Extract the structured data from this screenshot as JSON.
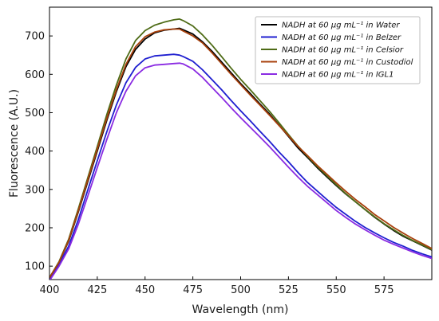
{
  "chart_data": {
    "type": "line",
    "xlabel": "Wavelength (nm)",
    "ylabel": "Fluorescence (A.U.)",
    "xlim": [
      400,
      600
    ],
    "ylim": [
      65,
      775
    ],
    "xticks": [
      "400",
      "425",
      "450",
      "475",
      "500",
      "525",
      "550",
      "575"
    ],
    "xtick_values": [
      400,
      425,
      450,
      475,
      500,
      525,
      550,
      575
    ],
    "yticks": [
      "100",
      "200",
      "300",
      "400",
      "500",
      "600",
      "700"
    ],
    "ytick_values": [
      100,
      200,
      300,
      400,
      500,
      600,
      700
    ],
    "grid": false,
    "legend_position": "top-right",
    "x": [
      400,
      405,
      410,
      415,
      420,
      425,
      430,
      435,
      440,
      445,
      450,
      455,
      460,
      465,
      468,
      470,
      475,
      480,
      485,
      490,
      495,
      500,
      505,
      510,
      515,
      520,
      525,
      530,
      535,
      540,
      545,
      550,
      555,
      560,
      565,
      570,
      575,
      580,
      585,
      590,
      595,
      600
    ],
    "series": [
      {
        "name": "NADH at 60 μg mL⁻¹ in Water",
        "color": "#000000",
        "values": [
          70,
          110,
          165,
          240,
          320,
          400,
          480,
          555,
          620,
          665,
          692,
          708,
          715,
          718,
          720,
          716,
          705,
          685,
          660,
          632,
          604,
          576,
          550,
          523,
          497,
          468,
          438,
          408,
          383,
          357,
          333,
          310,
          288,
          268,
          248,
          228,
          210,
          193,
          178,
          166,
          154,
          142
        ]
      },
      {
        "name": "NADH at 60 μg mL⁻¹ in Belzer",
        "color": "#1f1fd0",
        "values": [
          68,
          105,
          152,
          220,
          298,
          375,
          450,
          520,
          578,
          618,
          640,
          648,
          650,
          652,
          650,
          646,
          634,
          612,
          586,
          560,
          532,
          505,
          479,
          452,
          426,
          398,
          372,
          344,
          318,
          296,
          274,
          253,
          235,
          217,
          201,
          187,
          174,
          162,
          152,
          141,
          132,
          124
        ]
      },
      {
        "name": "NADH at 60 μg mL⁻¹ in Celsior",
        "color": "#4e6b16",
        "values": [
          70,
          112,
          170,
          248,
          330,
          412,
          495,
          572,
          640,
          688,
          714,
          728,
          736,
          742,
          744,
          740,
          726,
          703,
          676,
          646,
          616,
          587,
          560,
          532,
          504,
          474,
          443,
          413,
          386,
          360,
          336,
          312,
          289,
          268,
          248,
          229,
          211,
          195,
          180,
          167,
          155,
          143
        ]
      },
      {
        "name": "NADH at 60 μg mL⁻¹ in Custodiol",
        "color": "#a8400c",
        "values": [
          70,
          110,
          167,
          243,
          324,
          405,
          485,
          560,
          626,
          672,
          698,
          710,
          716,
          718,
          718,
          713,
          700,
          682,
          656,
          628,
          600,
          573,
          546,
          520,
          494,
          467,
          440,
          412,
          388,
          363,
          340,
          317,
          295,
          274,
          255,
          235,
          218,
          201,
          186,
          172,
          159,
          146
        ]
      },
      {
        "name": "NADH at 60 μg mL⁻¹ in IGL1",
        "color": "#8a2be2",
        "values": [
          62,
          100,
          145,
          208,
          282,
          357,
          430,
          500,
          556,
          596,
          617,
          624,
          626,
          628,
          629,
          627,
          614,
          592,
          566,
          540,
          513,
          487,
          462,
          437,
          412,
          385,
          358,
          332,
          308,
          287,
          266,
          245,
          227,
          210,
          195,
          181,
          168,
          157,
          147,
          137,
          128,
          120
        ]
      }
    ]
  }
}
